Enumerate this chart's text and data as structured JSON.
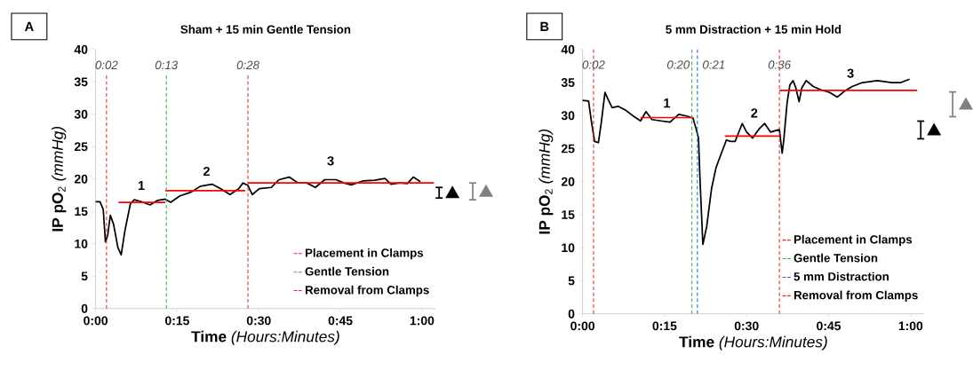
{
  "chart_data": [
    {
      "type": "line",
      "title": "Sham + 15 min Gentle Tension",
      "xlabel": "**Time** *(Hours:Minutes)*",
      "ylabel": "**IP pO**$_{2}$ *(mmHg)*",
      "xlim": [
        0,
        62.5
      ],
      "ylim": [
        0,
        40
      ],
      "xticks": [
        {
          "value": 0,
          "label": "0:00"
        },
        {
          "value": 15,
          "label": "0:15"
        },
        {
          "value": 30,
          "label": "0:30"
        },
        {
          "value": 45,
          "label": "0:45"
        },
        {
          "value": 60,
          "label": "1:00"
        }
      ],
      "yticks": [
        0,
        5,
        10,
        15,
        20,
        25,
        30,
        35,
        40
      ],
      "marker": "none",
      "legend": "bottom right",
      "series": [
        {
          "color": "#000000",
          "x": [
            0,
            0.8,
            1.4,
            1.8,
            2.2,
            2.7,
            3.3,
            4.1,
            4.7,
            5.4,
            6.4,
            7.1,
            8.4,
            10,
            11.4,
            12.8,
            13.8,
            15.5,
            17.6,
            19.3,
            21.4,
            23,
            24.7,
            26.3,
            27.1,
            28,
            28.8,
            30.1,
            32.3,
            33.7,
            35.6,
            37.2,
            38.8,
            40.4,
            42.1,
            44.2,
            45.6,
            47,
            49.1,
            51.3,
            53.2,
            54.3,
            55.9,
            57.3,
            58.4,
            59.7
          ],
          "values": [
            16.5,
            16.5,
            15.3,
            10.3,
            11.2,
            14.4,
            13,
            9.4,
            8.3,
            12.1,
            16.2,
            16.8,
            16.5,
            16,
            16.7,
            16.9,
            16.4,
            17.4,
            18,
            18.9,
            19.2,
            18.5,
            17.6,
            18.5,
            19.4,
            19,
            17.6,
            18.5,
            18.7,
            19.9,
            20.3,
            19.4,
            19.4,
            18.7,
            19.9,
            19.9,
            19.4,
            19.1,
            19.7,
            19.8,
            20.1,
            19.2,
            19.4,
            19.3,
            20.3,
            19.6
          ]
        },
        {
          "color": "#ff0000",
          "x": [
            4.2,
            12.8
          ],
          "values": [
            16.4,
            16.4
          ]
        },
        {
          "color": "#ff0000",
          "x": [
            12.8,
            27.5
          ],
          "values": [
            18.2,
            18.2
          ]
        },
        {
          "color": "#ff0000",
          "x": [
            28,
            62.2
          ],
          "values": [
            19.4,
            19.4
          ]
        },
        {
          "name": "Placement in Clamps",
          "color": "#e0302f",
          "line_style": "dashed",
          "x": [
            2,
            2
          ],
          "values": [
            0,
            36
          ]
        },
        {
          "name": "Gentle Tension",
          "color": "#3cb043",
          "line_style": "dashed",
          "x": [
            13,
            13
          ],
          "values": [
            0,
            36
          ]
        },
        {
          "name": "Removal from Clamps",
          "color": "#e0302f",
          "line_style": "dashed",
          "x": [
            28,
            28
          ],
          "values": [
            0,
            36
          ]
        }
      ],
      "annotations": [
        "A",
        "0:02",
        "0:13",
        "0:28",
        "1",
        "2",
        "3"
      ]
    },
    {
      "type": "line",
      "title": "5 mm Distraction + 15 min Hold",
      "xlabel": "**Time** *(Hours:Minutes)*",
      "ylabel": "**IP pO**$_{2}$ *(mmHg)*",
      "xlim": [
        0,
        62.5
      ],
      "ylim": [
        0,
        40
      ],
      "xticks": [
        {
          "value": 0,
          "label": "0:00"
        },
        {
          "value": 15,
          "label": "0:15"
        },
        {
          "value": 30,
          "label": "0:30"
        },
        {
          "value": 45,
          "label": "0:45"
        },
        {
          "value": 60,
          "label": "1:00"
        }
      ],
      "yticks": [
        0,
        5,
        10,
        15,
        20,
        25,
        30,
        35,
        40
      ],
      "marker": "none",
      "legend": "bottom right",
      "series": [
        {
          "color": "#000000",
          "x": [
            0,
            1.1,
            1.6,
            2.2,
            2.9,
            3.4,
            4.1,
            4.7,
            5.4,
            6.5,
            7.9,
            9.5,
            10.6,
            11.6,
            12.7,
            14.3,
            16,
            17.6,
            19.2,
            20.2,
            20.8,
            21.2,
            21.5,
            22,
            22.7,
            23.6,
            24.4,
            25.2,
            26.3,
            27.1,
            27.9,
            29.2,
            30,
            31.1,
            32.2,
            33.3,
            34.4,
            36,
            36.5,
            36.8,
            37.4,
            37.9,
            38.5,
            39,
            39.6,
            40.1,
            40.9,
            42.2,
            43.6,
            45.2,
            46.6,
            47.9,
            49.3,
            51.2,
            53.9,
            56.6,
            58.2,
            59.8
          ],
          "values": [
            32.3,
            32.2,
            29.2,
            26.1,
            25.9,
            28.8,
            33.5,
            32.4,
            31.2,
            31.4,
            30.8,
            29.8,
            29.2,
            30.6,
            29.4,
            29.2,
            29,
            30.2,
            29.9,
            29.6,
            27.9,
            26.6,
            19.9,
            10.5,
            13.2,
            19,
            22.1,
            23.9,
            26.3,
            26.1,
            26.1,
            28.8,
            27.5,
            26.6,
            27.9,
            28.8,
            27.5,
            27.9,
            24.3,
            26.3,
            31.9,
            34.6,
            35.3,
            34.2,
            32.1,
            34.2,
            35.3,
            34.4,
            33.9,
            33.5,
            32.8,
            33.7,
            34.4,
            35,
            35.3,
            35,
            35,
            35.5
          ]
        },
        {
          "color": "#ff0000",
          "x": [
            10.6,
            20.3
          ],
          "values": [
            29.7,
            29.7
          ]
        },
        {
          "color": "#ff0000",
          "x": [
            26,
            36
          ],
          "values": [
            26.9,
            26.9
          ]
        },
        {
          "color": "#ff0000",
          "x": [
            36,
            61.2
          ],
          "values": [
            33.8,
            33.8
          ]
        },
        {
          "name": "Placement in Clamps",
          "color": "#e0302f",
          "line_style": "dashed",
          "x": [
            2,
            2
          ],
          "values": [
            0,
            40
          ]
        },
        {
          "name": "Gentle Tension",
          "color": "#3cb043",
          "line_style": "dashed",
          "x": [
            20,
            20
          ],
          "values": [
            0,
            40
          ]
        },
        {
          "name": "5 mm Distraction",
          "color": "#3366cc",
          "line_style": "dashed",
          "x": [
            21,
            21
          ],
          "values": [
            0,
            40
          ]
        },
        {
          "name": "Removal from Clamps",
          "color": "#e0302f",
          "line_style": "dashed",
          "x": [
            36,
            36
          ],
          "values": [
            0,
            40
          ]
        }
      ],
      "annotations": [
        "B",
        "0:02",
        "0:20",
        "0:21",
        "0:36",
        "1",
        "2",
        "3"
      ]
    }
  ]
}
